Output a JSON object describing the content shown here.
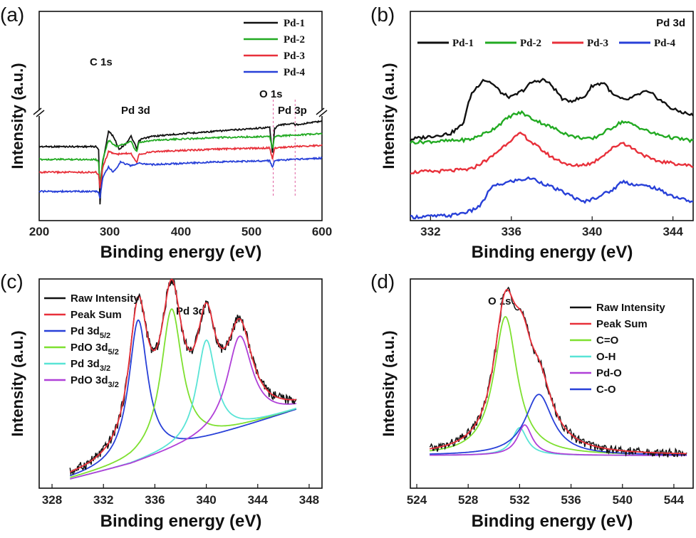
{
  "chart_data": [
    {
      "id": "a",
      "panel_label": "(a)",
      "type": "line",
      "xlabel": "Binding energy (eV)",
      "ylabel": "Intensity (a.u.)",
      "xlim": [
        200,
        600
      ],
      "xticks": [
        "200",
        "300",
        "400",
        "500",
        "600"
      ],
      "annotations": [
        "C 1s",
        "Pd 3d",
        "O 1s",
        "Pd 3p"
      ],
      "axis_break": true,
      "legend_position": "top-right",
      "series": [
        {
          "name": "Pd-1",
          "color": "#111111",
          "x": [
            200,
            280,
            284,
            286,
            290,
            298,
            305,
            313,
            322,
            330,
            335,
            338,
            341,
            345,
            360,
            400,
            450,
            500,
            526,
            530,
            533,
            540,
            560,
            562,
            600
          ],
          "y": [
            50,
            50,
            52,
            95,
            62,
            38,
            42,
            52,
            48,
            42,
            48,
            52,
            46,
            44,
            42,
            40,
            38,
            36,
            35,
            55,
            36,
            33,
            32,
            33,
            30
          ]
        },
        {
          "name": "Pd-2",
          "color": "#22aa22",
          "x": [
            200,
            280,
            284,
            286,
            290,
            298,
            310,
            330,
            335,
            338,
            341,
            360,
            450,
            526,
            530,
            533,
            560,
            600
          ],
          "y": [
            60,
            60,
            62,
            80,
            60,
            45,
            50,
            46,
            52,
            54,
            47,
            45,
            43,
            42,
            52,
            42,
            41,
            40
          ]
        },
        {
          "name": "Pd-3",
          "color": "#e8303a",
          "x": [
            200,
            280,
            284,
            286,
            290,
            298,
            310,
            330,
            335,
            338,
            341,
            360,
            450,
            526,
            530,
            533,
            560,
            600
          ],
          "y": [
            70,
            70,
            72,
            82,
            66,
            54,
            56,
            55,
            60,
            62,
            56,
            54,
            52,
            51,
            60,
            51,
            50,
            49
          ]
        },
        {
          "name": "Pd-4",
          "color": "#2840d8",
          "x": [
            200,
            280,
            284,
            286,
            290,
            298,
            305,
            315,
            330,
            340,
            360,
            450,
            526,
            530,
            533,
            560,
            600
          ],
          "y": [
            85,
            85,
            86,
            90,
            74,
            66,
            70,
            62,
            65,
            63,
            64,
            62,
            61,
            66,
            61,
            60,
            59
          ]
        }
      ]
    },
    {
      "id": "b",
      "panel_label": "(b)",
      "type": "line",
      "title": "Pd 3d",
      "xlabel": "Binding energy (eV)",
      "ylabel": "Intensity (a.u.)",
      "xlim": [
        331,
        345
      ],
      "xticks": [
        "332",
        "336",
        "340",
        "344"
      ],
      "legend_position": "top",
      "series": [
        {
          "name": "Pd-1",
          "color": "#111111",
          "x": [
            331,
            332,
            333,
            333.6,
            334,
            334.6,
            335,
            335.6,
            336,
            336.6,
            337,
            337.6,
            338,
            338.6,
            339,
            339.6,
            340,
            340.6,
            341,
            341.6,
            342,
            342.6,
            343,
            343.6,
            344,
            345
          ],
          "y": [
            2,
            4,
            6,
            12,
            32,
            42,
            40,
            32,
            30,
            35,
            40,
            42,
            38,
            28,
            28,
            30,
            38,
            40,
            32,
            28,
            30,
            34,
            32,
            26,
            22,
            18
          ]
        },
        {
          "name": "Pd-2",
          "color": "#22aa22",
          "x": [
            331,
            333,
            334,
            335,
            336,
            336.5,
            337,
            338,
            339,
            340,
            341,
            341.5,
            342,
            343,
            344,
            345
          ],
          "y": [
            0,
            1,
            2,
            8,
            18,
            20,
            16,
            10,
            4,
            2,
            10,
            14,
            12,
            6,
            3,
            1
          ]
        },
        {
          "name": "Pd-3",
          "color": "#e8303a",
          "x": [
            331,
            333,
            334,
            335,
            336,
            336.5,
            337,
            338,
            339,
            340,
            341,
            341.5,
            342,
            343,
            344,
            345
          ],
          "y": [
            -20,
            -19,
            -18,
            -10,
            2,
            6,
            0,
            -10,
            -16,
            -14,
            -4,
            0,
            -4,
            -12,
            -14,
            -16
          ]
        },
        {
          "name": "Pd-4",
          "color": "#2840d8",
          "x": [
            331,
            333,
            334,
            334.5,
            335,
            336,
            337,
            338,
            339,
            339.5,
            340,
            341,
            341.5,
            342,
            343,
            344,
            345
          ],
          "y": [
            -50,
            -49,
            -46,
            -42,
            -30,
            -26,
            -24,
            -30,
            -36,
            -40,
            -38,
            -32,
            -26,
            -28,
            -30,
            -36,
            -40
          ]
        }
      ]
    },
    {
      "id": "c",
      "panel_label": "(c)",
      "type": "line",
      "title": "Pd 3d",
      "xlabel": "Binding energy (eV)",
      "ylabel": "Intensity (a.u.)",
      "xlim": [
        327,
        349
      ],
      "xticks": [
        "328",
        "332",
        "336",
        "340",
        "344",
        "348"
      ],
      "legend_position": "top-left",
      "series": [
        {
          "name": "Raw Intensity",
          "legend_main": "Raw Intensity",
          "legend_sub": "",
          "color": "#111111"
        },
        {
          "name": "Peak Sum",
          "legend_main": "Peak Sum",
          "legend_sub": "",
          "color": "#e8303a"
        },
        {
          "name": "Pd 3d5/2",
          "legend_main": "Pd 3d",
          "legend_sub": "5/2",
          "color": "#2840d8",
          "center": 334.7,
          "height": 100,
          "width": 0.9
        },
        {
          "name": "PdO 3d5/2",
          "legend_main": "PdO 3d",
          "legend_sub": "5/2",
          "color": "#7ee030",
          "center": 337.3,
          "height": 100,
          "width": 1.0
        },
        {
          "name": "Pd 3d3/2",
          "legend_main": "Pd 3d",
          "legend_sub": "3/2",
          "color": "#59e4d6",
          "center": 340.0,
          "height": 70,
          "width": 0.9
        },
        {
          "name": "PdO 3d3/2",
          "legend_main": "PdO 3d",
          "legend_sub": "3/2",
          "color": "#b040d8",
          "center": 342.6,
          "height": 65,
          "width": 1.2
        }
      ]
    },
    {
      "id": "d",
      "panel_label": "(d)",
      "type": "line",
      "title": "O 1s",
      "xlabel": "Binding energy (eV)",
      "ylabel": "Intensity (a.u.)",
      "xlim": [
        523.5,
        545.5
      ],
      "xticks": [
        "524",
        "528",
        "532",
        "536",
        "540",
        "544"
      ],
      "legend_position": "top-right",
      "series": [
        {
          "name": "Raw Intensity",
          "color": "#111111"
        },
        {
          "name": "Peak Sum",
          "color": "#e8303a"
        },
        {
          "name": "C=O",
          "color": "#7ee030",
          "center": 530.9,
          "height": 100,
          "width": 1.1
        },
        {
          "name": "O-H",
          "color": "#59e4d6",
          "center": 532.0,
          "height": 20,
          "width": 0.7
        },
        {
          "name": "Pd-O",
          "color": "#b040d8",
          "center": 532.4,
          "height": 22,
          "width": 0.7
        },
        {
          "name": "C-O",
          "color": "#2840d8",
          "center": 533.5,
          "height": 44,
          "width": 1.3
        }
      ]
    }
  ]
}
